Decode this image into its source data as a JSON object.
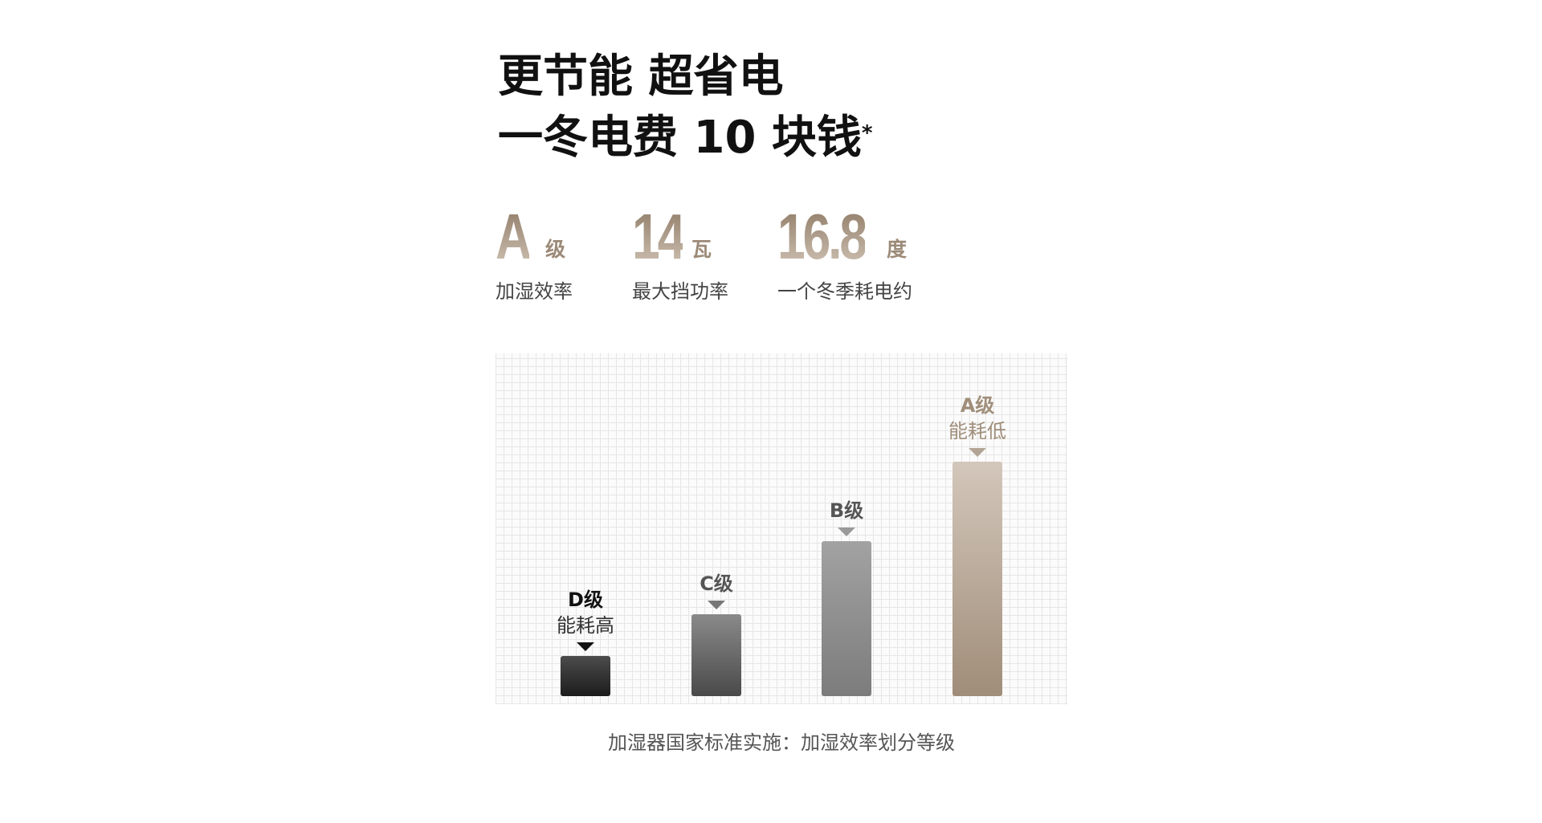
{
  "headline": {
    "line1": "更节能 超省电",
    "line2": "一冬电费 10 块钱",
    "footnote_mark": "*"
  },
  "stats": [
    {
      "value": "A",
      "unit": "级",
      "label": "加湿效率"
    },
    {
      "value": "14",
      "unit": "瓦",
      "label": "最大挡功率"
    },
    {
      "value": "16.8",
      "unit": "度",
      "label": "一个冬季耗电约"
    }
  ],
  "chart_data": {
    "type": "bar",
    "categories": [
      "D级",
      "C级",
      "B级",
      "A级"
    ],
    "sublabels": [
      "能耗高",
      "",
      "",
      "能耗低"
    ],
    "values": [
      17,
      35,
      66,
      100
    ],
    "grid": true,
    "colors": {
      "D级": "#2a2a2a",
      "C级": "#666666",
      "B级": "#8c8c8c",
      "A级": "#b8a793"
    }
  },
  "caption": "加湿器国家标准实施：加湿效率划分等级"
}
